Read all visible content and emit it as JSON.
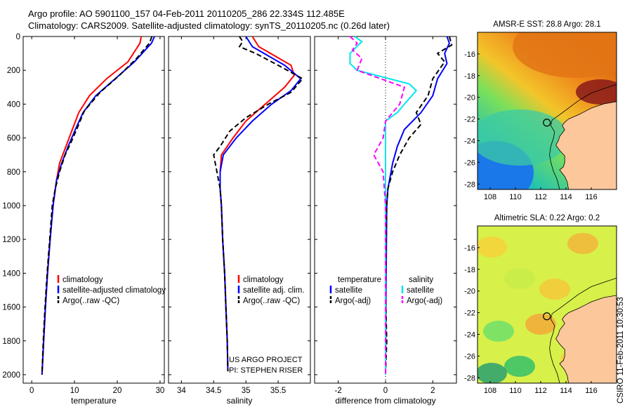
{
  "header": {
    "line1": "Argo profile: AO 5901100_157 04-Feb-2011 20110205_286 22.334S 112.485E",
    "line2": "Climatology: CARS2009. Satellite-adjusted climatology: synTS_20110205.nc (0.26d later)"
  },
  "signature": "CSIRO 11-Feb-2011 10:30:53",
  "colors": {
    "climatology": "#ff0000",
    "satellite": "#0000ff",
    "argo": "#000000",
    "satellite_diff": "#00e5ee",
    "argo_adj_diff": "#ff00ff",
    "land": "#fcc79b"
  },
  "chart_data": [
    {
      "type": "line",
      "id": "temperature",
      "xlabel": "temperature",
      "ylabel": "",
      "xlim": [
        -2,
        31
      ],
      "ylim": [
        0,
        2050
      ],
      "y_reversed": true,
      "xticks": [
        0,
        10,
        20,
        30
      ],
      "yticks": [
        0,
        200,
        400,
        600,
        800,
        1000,
        1200,
        1400,
        1600,
        1800,
        2000
      ],
      "legend": [
        "climatology",
        "satellite-adjusted climatology",
        "Argo(..raw -QC)"
      ],
      "series": [
        {
          "name": "climatology",
          "style": "solid",
          "color": "#ff0000",
          "points": [
            [
              25.6,
              0
            ],
            [
              25.3,
              40
            ],
            [
              22.5,
              150
            ],
            [
              17.5,
              250
            ],
            [
              13.5,
              350
            ],
            [
              11.0,
              450
            ],
            [
              9.5,
              550
            ],
            [
              8.0,
              650
            ],
            [
              6.5,
              750
            ],
            [
              5.8,
              850
            ],
            [
              5.0,
              1000
            ],
            [
              4.3,
              1200
            ],
            [
              3.7,
              1400
            ],
            [
              3.2,
              1600
            ],
            [
              2.8,
              1800
            ],
            [
              2.4,
              2000
            ]
          ]
        },
        {
          "name": "satellite-adjusted climatology",
          "style": "solid",
          "color": "#0000ff",
          "points": [
            [
              28.7,
              0
            ],
            [
              28.0,
              40
            ],
            [
              24.0,
              150
            ],
            [
              19.5,
              250
            ],
            [
              15.0,
              350
            ],
            [
              12.0,
              450
            ],
            [
              10.2,
              550
            ],
            [
              8.5,
              650
            ],
            [
              7.0,
              750
            ],
            [
              5.8,
              850
            ],
            [
              5.0,
              1000
            ],
            [
              4.3,
              1200
            ],
            [
              3.7,
              1400
            ],
            [
              3.2,
              1600
            ],
            [
              2.8,
              1800
            ],
            [
              2.4,
              2000
            ]
          ]
        },
        {
          "name": "Argo(..raw -QC)",
          "style": "dash",
          "color": "#000000",
          "points": [
            [
              28.1,
              0
            ],
            [
              27.5,
              40
            ],
            [
              24.5,
              130
            ],
            [
              20.5,
              230
            ],
            [
              16.0,
              330
            ],
            [
              12.3,
              440
            ],
            [
              10.5,
              550
            ],
            [
              9.3,
              620
            ],
            [
              7.8,
              700
            ],
            [
              6.5,
              800
            ],
            [
              5.5,
              900
            ],
            [
              4.8,
              1000
            ],
            [
              4.2,
              1200
            ],
            [
              3.6,
              1400
            ],
            [
              3.1,
              1600
            ],
            [
              2.7,
              1800
            ],
            [
              2.4,
              2000
            ]
          ]
        }
      ]
    },
    {
      "type": "line",
      "id": "salinity",
      "xlabel": "salinity",
      "ylabel": "",
      "xlim": [
        33.8,
        36.0
      ],
      "ylim": [
        0,
        2050
      ],
      "y_reversed": true,
      "xticks": [
        34,
        34.5,
        35,
        35.5
      ],
      "yticks": [],
      "legend": [
        "climatology",
        "satellite adj. clim.",
        "Argo(..raw -QC)"
      ],
      "annotation": [
        "US ARGO PROJECT",
        "PI: STEPHEN RISER"
      ],
      "series": [
        {
          "name": "climatology",
          "style": "solid",
          "color": "#ff0000",
          "points": [
            [
              35.1,
              0
            ],
            [
              35.2,
              60
            ],
            [
              35.7,
              170
            ],
            [
              35.75,
              230
            ],
            [
              35.6,
              300
            ],
            [
              35.3,
              400
            ],
            [
              35.0,
              500
            ],
            [
              34.8,
              600
            ],
            [
              34.62,
              700
            ],
            [
              34.6,
              800
            ],
            [
              34.6,
              900
            ],
            [
              34.62,
              1000
            ],
            [
              34.64,
              1200
            ],
            [
              34.67,
              1400
            ],
            [
              34.69,
              1600
            ],
            [
              34.71,
              1800
            ],
            [
              34.72,
              1980
            ]
          ]
        },
        {
          "name": "satellite adj. clim.",
          "style": "solid",
          "color": "#0000ff",
          "points": [
            [
              35.0,
              0
            ],
            [
              35.1,
              60
            ],
            [
              35.6,
              170
            ],
            [
              35.85,
              250
            ],
            [
              35.7,
              320
            ],
            [
              35.4,
              400
            ],
            [
              35.1,
              500
            ],
            [
              34.85,
              600
            ],
            [
              34.65,
              700
            ],
            [
              34.6,
              800
            ],
            [
              34.6,
              900
            ],
            [
              34.62,
              1000
            ],
            [
              34.64,
              1200
            ],
            [
              34.67,
              1400
            ],
            [
              34.69,
              1600
            ],
            [
              34.71,
              1800
            ],
            [
              34.72,
              1980
            ]
          ]
        },
        {
          "name": "Argo(..raw -QC)",
          "style": "dash",
          "color": "#000000",
          "points": [
            [
              34.9,
              0
            ],
            [
              34.95,
              30
            ],
            [
              34.9,
              60
            ],
            [
              35.15,
              100
            ],
            [
              35.5,
              170
            ],
            [
              35.88,
              250
            ],
            [
              35.7,
              330
            ],
            [
              35.35,
              400
            ],
            [
              35.0,
              480
            ],
            [
              34.75,
              560
            ],
            [
              34.6,
              650
            ],
            [
              34.5,
              700
            ],
            [
              34.55,
              800
            ],
            [
              34.6,
              900
            ],
            [
              34.62,
              1000
            ],
            [
              34.64,
              1200
            ],
            [
              34.67,
              1400
            ],
            [
              34.69,
              1600
            ],
            [
              34.71,
              1800
            ],
            [
              34.72,
              1980
            ]
          ]
        }
      ]
    },
    {
      "type": "line",
      "id": "difference",
      "xlabel": "difference from climatology",
      "ylabel": "",
      "xlim": [
        -3,
        3
      ],
      "ylim": [
        0,
        2050
      ],
      "y_reversed": true,
      "xticks": [
        -2,
        0,
        2
      ],
      "yticks": [],
      "zero_line": true,
      "legend_left_title": "temperature",
      "legend_left": [
        "satellite",
        "Argo(-adj)"
      ],
      "legend_right_title": "salinity",
      "legend_right": [
        "satellite",
        "Argo(-adj)"
      ],
      "series": [
        {
          "name": "temperature satellite",
          "style": "solid",
          "color": "#0000ff",
          "points": [
            [
              2.6,
              0
            ],
            [
              2.7,
              40
            ],
            [
              2.5,
              100
            ],
            [
              2.6,
              160
            ],
            [
              2.2,
              250
            ],
            [
              2.0,
              350
            ],
            [
              1.5,
              450
            ],
            [
              0.8,
              550
            ],
            [
              0.5,
              650
            ],
            [
              0.3,
              750
            ],
            [
              0.1,
              900
            ],
            [
              0.05,
              1000
            ],
            [
              0.02,
              1500
            ],
            [
              0.0,
              2000
            ]
          ]
        },
        {
          "name": "temperature Argo(-adj)",
          "style": "dash",
          "color": "#000000",
          "points": [
            [
              2.7,
              0
            ],
            [
              2.8,
              50
            ],
            [
              2.2,
              100
            ],
            [
              2.5,
              150
            ],
            [
              2.0,
              250
            ],
            [
              1.8,
              350
            ],
            [
              1.3,
              450
            ],
            [
              1.5,
              520
            ],
            [
              1.0,
              600
            ],
            [
              0.6,
              700
            ],
            [
              0.3,
              800
            ],
            [
              0.1,
              900
            ],
            [
              0.05,
              1000
            ],
            [
              0.0,
              1500
            ],
            [
              0.05,
              1800
            ],
            [
              0.0,
              2000
            ]
          ]
        },
        {
          "name": "salinity satellite",
          "style": "solid",
          "color": "#00e5ee",
          "points": [
            [
              -1.3,
              0
            ],
            [
              -1.0,
              30
            ],
            [
              -1.5,
              100
            ],
            [
              -1.5,
              160
            ],
            [
              -1.2,
              200
            ],
            [
              1.0,
              280
            ],
            [
              1.3,
              320
            ],
            [
              0.8,
              400
            ],
            [
              0.5,
              450
            ],
            [
              0.0,
              500
            ],
            [
              0.0,
              700
            ],
            [
              0.0,
              1000
            ],
            [
              0.0,
              1500
            ],
            [
              0.0,
              1900
            ],
            [
              0.0,
              2000
            ]
          ]
        },
        {
          "name": "salinity Argo(-adj)",
          "style": "dash",
          "color": "#ff00ff",
          "points": [
            [
              -1.5,
              0
            ],
            [
              -1.2,
              40
            ],
            [
              -1.4,
              80
            ],
            [
              -1.0,
              130
            ],
            [
              -1.2,
              200
            ],
            [
              0.8,
              300
            ],
            [
              0.6,
              400
            ],
            [
              0.0,
              500
            ],
            [
              -0.1,
              600
            ],
            [
              -0.5,
              700
            ],
            [
              -0.1,
              800
            ],
            [
              0.0,
              1000
            ],
            [
              0.0,
              1500
            ],
            [
              0.0,
              2000
            ]
          ]
        }
      ]
    },
    {
      "type": "heatmap",
      "id": "sst_map",
      "title": "AMSR-E SST: 28.8 Argo: 28.1",
      "xlim": [
        107,
        118
      ],
      "ylim": [
        -28.5,
        -14
      ],
      "xticks": [
        108,
        110,
        112,
        114,
        116
      ],
      "yticks": [
        -16,
        -18,
        -20,
        -22,
        -24,
        -26,
        -28
      ],
      "float_position": [
        112.485,
        -22.334
      ]
    },
    {
      "type": "heatmap",
      "id": "sla_map",
      "title": "Altimetric SLA: 0.22 Argo: 0.2",
      "xlim": [
        107,
        118
      ],
      "ylim": [
        -28.5,
        -14
      ],
      "xticks": [
        108,
        110,
        112,
        114,
        116
      ],
      "yticks": [
        -16,
        -18,
        -20,
        -22,
        -24,
        -26,
        -28
      ],
      "float_position": [
        112.485,
        -22.334
      ]
    }
  ]
}
